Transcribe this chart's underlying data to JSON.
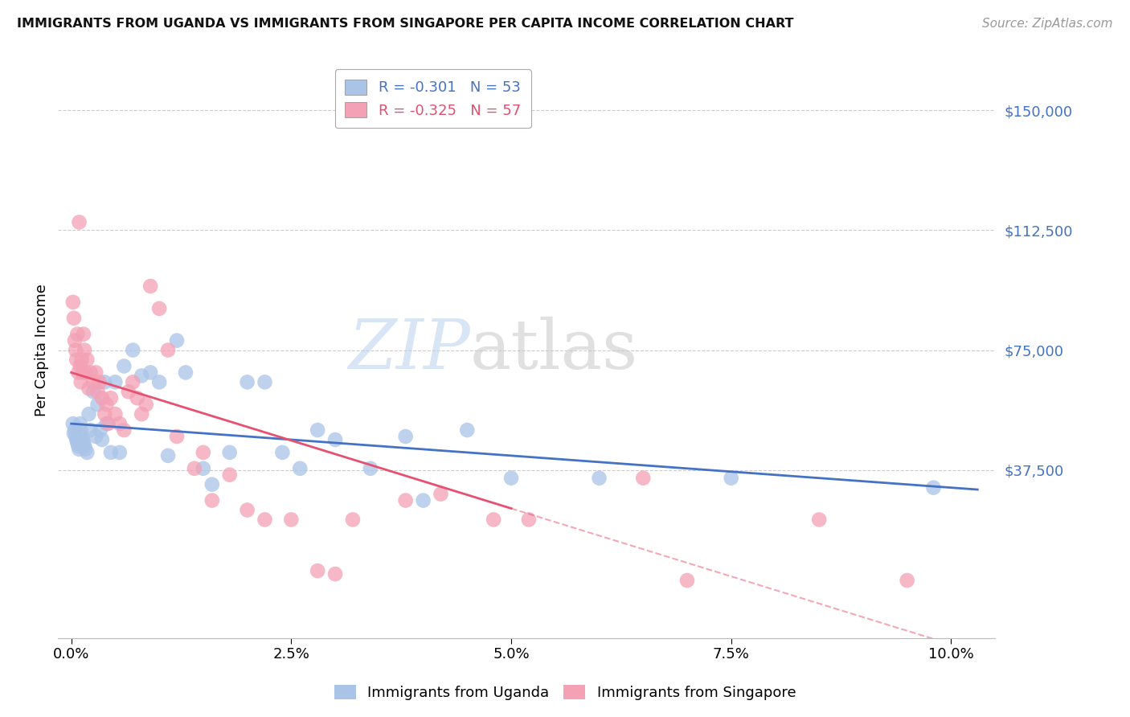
{
  "title": "IMMIGRANTS FROM UGANDA VS IMMIGRANTS FROM SINGAPORE PER CAPITA INCOME CORRELATION CHART",
  "source": "Source: ZipAtlas.com",
  "ylabel": "Per Capita Income",
  "xlabel_ticks": [
    "0.0%",
    "2.5%",
    "5.0%",
    "7.5%",
    "10.0%"
  ],
  "ytick_labels": [
    "$37,500",
    "$75,000",
    "$112,500",
    "$150,000"
  ],
  "ytick_vals": [
    37500,
    75000,
    112500,
    150000
  ],
  "ylim": [
    -15000,
    165000
  ],
  "xlim": [
    -0.15,
    10.5
  ],
  "watermark_zip": "ZIP",
  "watermark_atlas": "atlas",
  "legend_label1": "Immigrants from Uganda",
  "legend_label2": "Immigrants from Singapore",
  "uganda_color": "#aac4e8",
  "singapore_color": "#f4a0b5",
  "trend_uganda_color": "#4472c4",
  "trend_singapore_color": "#e85070",
  "uganda_R": -0.301,
  "uganda_N": 53,
  "singapore_R": -0.325,
  "singapore_N": 57,
  "uganda_x": [
    0.02,
    0.03,
    0.04,
    0.05,
    0.06,
    0.07,
    0.08,
    0.09,
    0.1,
    0.11,
    0.12,
    0.13,
    0.14,
    0.15,
    0.16,
    0.18,
    0.2,
    0.22,
    0.25,
    0.28,
    0.3,
    0.33,
    0.35,
    0.38,
    0.4,
    0.45,
    0.5,
    0.55,
    0.6,
    0.7,
    0.8,
    0.9,
    1.0,
    1.1,
    1.2,
    1.3,
    1.5,
    1.6,
    1.8,
    2.0,
    2.2,
    2.4,
    2.6,
    2.8,
    3.0,
    3.4,
    3.8,
    4.0,
    4.5,
    5.0,
    6.0,
    7.5,
    9.8
  ],
  "uganda_y": [
    52000,
    49000,
    50000,
    48000,
    47000,
    46000,
    45000,
    44000,
    52000,
    50000,
    48000,
    47000,
    46000,
    45000,
    44000,
    43000,
    55000,
    50000,
    62000,
    48000,
    58000,
    50000,
    47000,
    65000,
    52000,
    43000,
    65000,
    43000,
    70000,
    75000,
    67000,
    68000,
    65000,
    42000,
    78000,
    68000,
    38000,
    33000,
    43000,
    65000,
    65000,
    43000,
    38000,
    50000,
    47000,
    38000,
    48000,
    28000,
    50000,
    35000,
    35000,
    35000,
    32000
  ],
  "singapore_x": [
    0.02,
    0.03,
    0.04,
    0.05,
    0.06,
    0.07,
    0.08,
    0.09,
    0.1,
    0.11,
    0.12,
    0.13,
    0.14,
    0.15,
    0.16,
    0.18,
    0.2,
    0.22,
    0.25,
    0.28,
    0.3,
    0.32,
    0.35,
    0.38,
    0.4,
    0.42,
    0.45,
    0.5,
    0.55,
    0.6,
    0.65,
    0.7,
    0.75,
    0.8,
    0.85,
    0.9,
    1.0,
    1.1,
    1.2,
    1.4,
    1.5,
    1.6,
    1.8,
    2.0,
    2.2,
    2.5,
    2.8,
    3.0,
    3.2,
    3.8,
    4.2,
    4.8,
    5.2,
    6.5,
    7.0,
    8.5,
    9.5
  ],
  "singapore_y": [
    90000,
    85000,
    78000,
    75000,
    72000,
    80000,
    68000,
    115000,
    70000,
    65000,
    72000,
    68000,
    80000,
    75000,
    68000,
    72000,
    63000,
    68000,
    65000,
    68000,
    62000,
    65000,
    60000,
    55000,
    58000,
    52000,
    60000,
    55000,
    52000,
    50000,
    62000,
    65000,
    60000,
    55000,
    58000,
    95000,
    88000,
    75000,
    48000,
    38000,
    43000,
    28000,
    36000,
    25000,
    22000,
    22000,
    6000,
    5000,
    22000,
    28000,
    30000,
    22000,
    22000,
    35000,
    3000,
    22000,
    3000
  ]
}
